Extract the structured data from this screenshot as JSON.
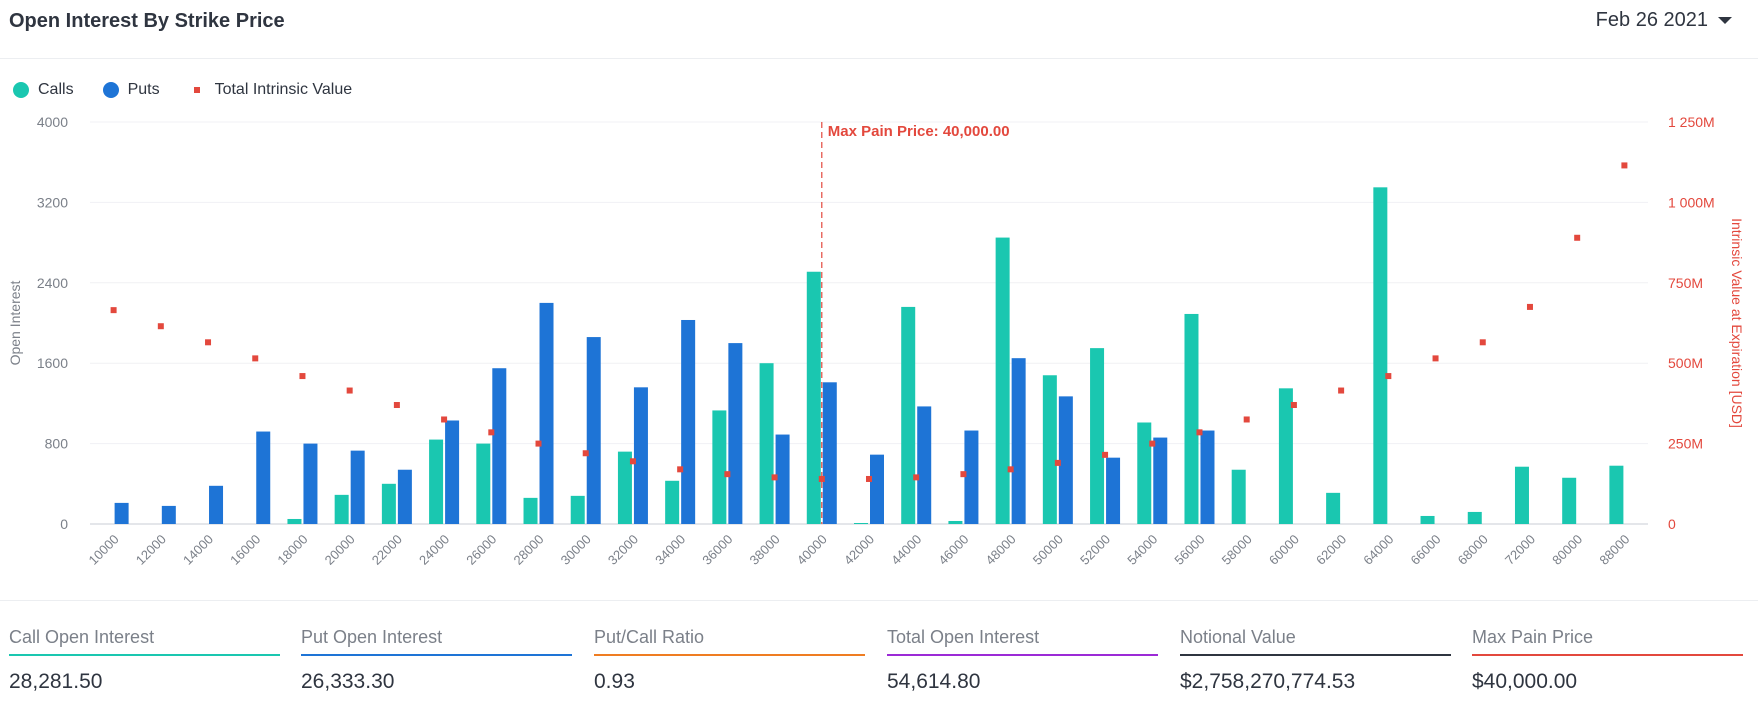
{
  "header": {
    "title": "Open Interest By Strike Price",
    "date": "Feb 26 2021"
  },
  "legend": [
    {
      "label": "Calls",
      "color": "#1ac7b0",
      "kind": "dot"
    },
    {
      "label": "Puts",
      "color": "#1e74d6",
      "kind": "dot"
    },
    {
      "label": "Total Intrinsic Value",
      "color": "#e3483d",
      "kind": "square"
    }
  ],
  "chart_data": {
    "type": "bar",
    "categories": [
      "10000",
      "12000",
      "14000",
      "16000",
      "18000",
      "20000",
      "22000",
      "24000",
      "26000",
      "28000",
      "30000",
      "32000",
      "34000",
      "36000",
      "38000",
      "40000",
      "42000",
      "44000",
      "46000",
      "48000",
      "50000",
      "52000",
      "54000",
      "56000",
      "58000",
      "60000",
      "62000",
      "64000",
      "66000",
      "68000",
      "72000",
      "80000",
      "88000"
    ],
    "series": [
      {
        "name": "Calls",
        "color": "#1ac7b0",
        "axis": "left",
        "values": [
          0,
          0,
          0,
          0,
          50,
          290,
          400,
          840,
          800,
          260,
          280,
          720,
          430,
          1130,
          1600,
          2510,
          10,
          2160,
          30,
          2850,
          1480,
          1750,
          1010,
          2090,
          540,
          1350,
          310,
          3350,
          80,
          120,
          570,
          460,
          580
        ]
      },
      {
        "name": "Puts",
        "color": "#1e74d6",
        "axis": "left",
        "values": [
          210,
          180,
          380,
          920,
          800,
          730,
          540,
          1030,
          1550,
          2200,
          1860,
          1360,
          2030,
          1800,
          890,
          1410,
          690,
          1170,
          930,
          1650,
          1270,
          660,
          860,
          930,
          0,
          0,
          0,
          0,
          0,
          0,
          0,
          0,
          0
        ]
      },
      {
        "name": "Total Intrinsic Value",
        "color": "#e3483d",
        "axis": "right",
        "type": "scatter",
        "values": [
          665000000,
          615000000,
          565000000,
          515000000,
          460000000,
          415000000,
          370000000,
          325000000,
          285000000,
          250000000,
          220000000,
          195000000,
          170000000,
          155000000,
          145000000,
          140000000,
          140000000,
          145000000,
          155000000,
          170000000,
          190000000,
          215000000,
          250000000,
          285000000,
          325000000,
          370000000,
          415000000,
          460000000,
          515000000,
          565000000,
          675000000,
          890000000,
          1115000000
        ]
      }
    ],
    "y_left": {
      "label": "Open Interest",
      "ticks": [
        "0",
        "800",
        "1600",
        "2400",
        "3200",
        "4000"
      ],
      "range": [
        0,
        4000
      ]
    },
    "y_right": {
      "label": "Intrinsic Value at Expiration [USD]",
      "ticks": [
        "0",
        "250M",
        "500M",
        "750M",
        "1 000M",
        "1 250M"
      ],
      "range": [
        0,
        1250000000
      ]
    },
    "annotation": {
      "label": "Max Pain Price: 40,000.00",
      "category": "40000"
    },
    "grid": true,
    "legend_position": "top-left"
  },
  "stats": [
    {
      "label": "Call Open Interest",
      "value": "28,281.50",
      "color": "#1ac7b0"
    },
    {
      "label": "Put Open Interest",
      "value": "26,333.30",
      "color": "#1e74d6"
    },
    {
      "label": "Put/Call Ratio",
      "value": "0.93",
      "color": "#ef7d22"
    },
    {
      "label": "Total Open Interest",
      "value": "54,614.80",
      "color": "#9c2ad6"
    },
    {
      "label": "Notional Value",
      "value": "$2,758,270,774.53",
      "color": "#2f3540"
    },
    {
      "label": "Max Pain Price",
      "value": "$40,000.00",
      "color": "#e3483d"
    }
  ]
}
